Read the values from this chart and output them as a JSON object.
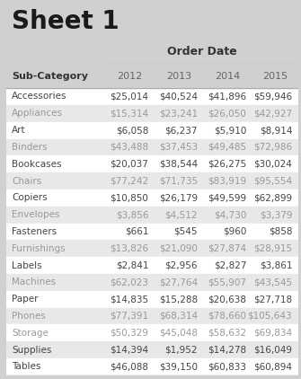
{
  "title": "Sheet 1",
  "col_header": "Order Date",
  "row_header": "Sub-Category",
  "years": [
    "2012",
    "2013",
    "2014",
    "2015"
  ],
  "rows": [
    [
      "Accessories",
      "$25,014",
      "$40,524",
      "$41,896",
      "$59,946"
    ],
    [
      "Appliances",
      "$15,314",
      "$23,241",
      "$26,050",
      "$42,927"
    ],
    [
      "Art",
      "$6,058",
      "$6,237",
      "$5,910",
      "$8,914"
    ],
    [
      "Binders",
      "$43,488",
      "$37,453",
      "$49,485",
      "$72,986"
    ],
    [
      "Bookcases",
      "$20,037",
      "$38,544",
      "$26,275",
      "$30,024"
    ],
    [
      "Chairs",
      "$77,242",
      "$71,735",
      "$83,919",
      "$95,554"
    ],
    [
      "Copiers",
      "$10,850",
      "$26,179",
      "$49,599",
      "$62,899"
    ],
    [
      "Envelopes",
      "$3,856",
      "$4,512",
      "$4,730",
      "$3,379"
    ],
    [
      "Fasteners",
      "$661",
      "$545",
      "$960",
      "$858"
    ],
    [
      "Furnishings",
      "$13,826",
      "$21,090",
      "$27,874",
      "$28,915"
    ],
    [
      "Labels",
      "$2,841",
      "$2,956",
      "$2,827",
      "$3,861"
    ],
    [
      "Machines",
      "$62,023",
      "$27,764",
      "$55,907",
      "$43,545"
    ],
    [
      "Paper",
      "$14,835",
      "$15,288",
      "$20,638",
      "$27,718"
    ],
    [
      "Phones",
      "$77,391",
      "$68,314",
      "$78,660",
      "$105,643"
    ],
    [
      "Storage",
      "$50,329",
      "$45,048",
      "$58,632",
      "$69,834"
    ],
    [
      "Supplies",
      "$14,394",
      "$1,952",
      "$14,278",
      "$16,049"
    ],
    [
      "Tables",
      "$46,088",
      "$39,150",
      "$60,833",
      "$60,894"
    ]
  ],
  "bg_color": "#d0d0d0",
  "table_bg": "#ffffff",
  "row_alt_color": "#e8e8e8",
  "title_color": "#1a1a1a",
  "header_text_color": "#333333",
  "light_text_rows": [
    "Appliances",
    "Binders",
    "Chairs",
    "Envelopes",
    "Furnishings",
    "Machines",
    "Phones",
    "Storage"
  ],
  "dark_text_color": "#444444",
  "light_text_color": "#999999",
  "year_text_color": "#666666",
  "line_color": "#aaaaaa"
}
